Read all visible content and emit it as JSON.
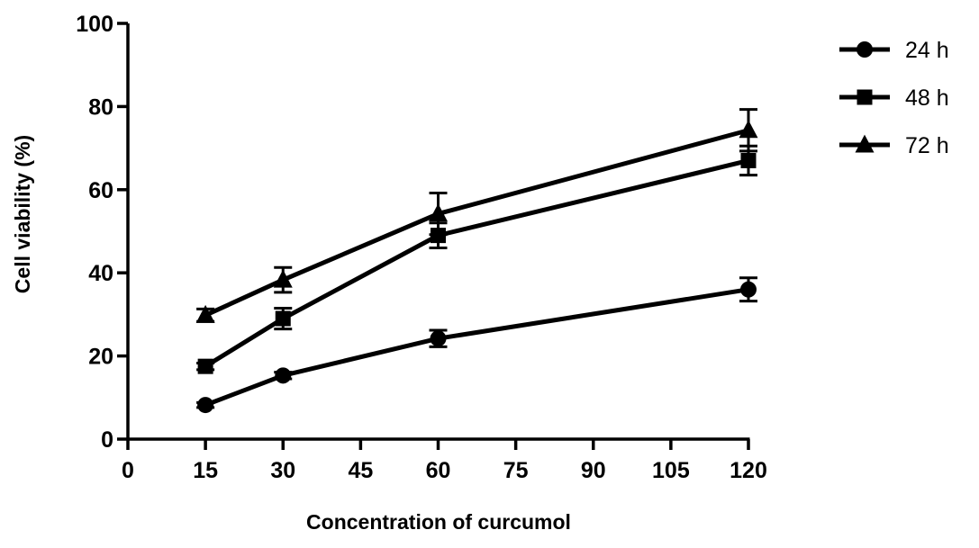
{
  "chart_data": {
    "type": "line",
    "xlabel": "Concentration of curcumol",
    "ylabel": "Cell viability (%)",
    "xlim": [
      0,
      120
    ],
    "ylim": [
      0,
      100
    ],
    "x_ticks": [
      0,
      15,
      30,
      45,
      60,
      75,
      90,
      105,
      120
    ],
    "y_ticks": [
      0,
      20,
      40,
      60,
      80,
      100
    ],
    "x": [
      15,
      30,
      60,
      120
    ],
    "grid": false,
    "legend_position": "top-right",
    "series": [
      {
        "name": "24 h",
        "marker": "circle",
        "values": [
          8.2,
          15.3,
          24.2,
          36.0
        ],
        "errors": [
          0.6,
          0.8,
          2.0,
          2.8
        ]
      },
      {
        "name": "48 h",
        "marker": "square",
        "values": [
          17.5,
          29.0,
          49.0,
          67.0
        ],
        "errors": [
          0.8,
          2.5,
          3.0,
          3.5
        ]
      },
      {
        "name": "72 h",
        "marker": "triangle",
        "values": [
          29.8,
          38.3,
          54.2,
          74.3
        ],
        "errors": [
          1.5,
          3.0,
          5.0,
          5.0
        ]
      }
    ],
    "line_color": "#000000"
  }
}
